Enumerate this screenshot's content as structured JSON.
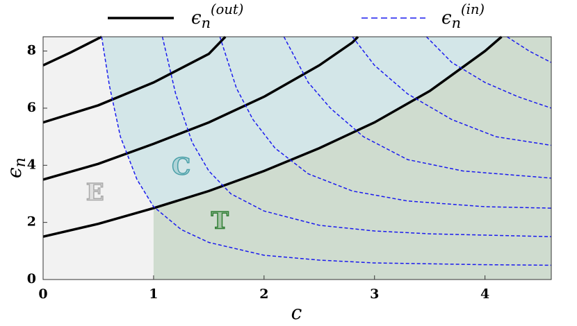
{
  "chart_data": {
    "type": "line",
    "x_label": "c",
    "y_label": "ϵn",
    "xlim": [
      0,
      4.6
    ],
    "ylim": [
      0,
      8.5
    ],
    "xticks": [
      0,
      1,
      2,
      3,
      4
    ],
    "yticks": [
      0,
      2,
      4,
      6,
      8
    ],
    "annotations": [
      "E",
      "C",
      "T"
    ],
    "series": [
      {
        "name": "ϵn(out)",
        "color": "#000000",
        "dashed": false,
        "curves": [
          {
            "x": [
              0,
              0.5,
              1,
              1.5,
              2,
              2.5,
              3,
              3.5,
              4,
              4.15
            ],
            "values": [
              1.5,
              1.95,
              2.5,
              3.1,
              3.8,
              4.6,
              5.5,
              6.6,
              8.0,
              8.5
            ]
          },
          {
            "x": [
              0,
              0.5,
              1,
              1.5,
              2,
              2.5,
              2.8,
              2.85
            ],
            "values": [
              3.5,
              4.05,
              4.75,
              5.5,
              6.4,
              7.5,
              8.3,
              8.5
            ]
          },
          {
            "x": [
              0,
              0.5,
              1,
              1.5,
              1.65
            ],
            "values": [
              5.5,
              6.1,
              6.9,
              7.9,
              8.5
            ]
          },
          {
            "x": [
              0,
              0.25,
              0.53
            ],
            "values": [
              7.5,
              7.95,
              8.5
            ]
          }
        ]
      },
      {
        "name": "ϵn(in)",
        "color": "#1a1aee",
        "dashed": true,
        "curves": [
          {
            "x": [
              0.53,
              0.6,
              0.7,
              0.85,
              1,
              1.25,
              1.5,
              2,
              2.5,
              3,
              4,
              4.6
            ],
            "values": [
              8.5,
              6.8,
              5.0,
              3.5,
              2.55,
              1.75,
              1.3,
              0.85,
              0.68,
              0.58,
              0.52,
              0.5
            ]
          },
          {
            "x": [
              1.08,
              1.2,
              1.35,
              1.5,
              1.7,
              2,
              2.5,
              3,
              3.5,
              4.6
            ],
            "values": [
              8.5,
              6.5,
              4.8,
              3.8,
              3.0,
              2.4,
              1.9,
              1.7,
              1.6,
              1.5
            ]
          },
          {
            "x": [
              1.6,
              1.75,
              1.9,
              2.1,
              2.4,
              2.8,
              3.3,
              4,
              4.6
            ],
            "values": [
              8.5,
              6.7,
              5.6,
              4.6,
              3.7,
              3.1,
              2.75,
              2.55,
              2.5
            ]
          },
          {
            "x": [
              2.18,
              2.4,
              2.6,
              2.9,
              3.3,
              3.8,
              4.6
            ],
            "values": [
              8.5,
              6.9,
              6.0,
              5.0,
              4.2,
              3.8,
              3.55
            ]
          },
          {
            "x": [
              2.8,
              3.0,
              3.3,
              3.7,
              4.1,
              4.6
            ],
            "values": [
              8.5,
              7.5,
              6.5,
              5.6,
              5.0,
              4.7
            ]
          },
          {
            "x": [
              3.47,
              3.7,
              4.0,
              4.3,
              4.6
            ],
            "values": [
              8.5,
              7.6,
              6.9,
              6.4,
              6.0
            ]
          },
          {
            "x": [
              4.2,
              4.4,
              4.6
            ],
            "values": [
              8.5,
              8.0,
              7.6
            ]
          }
        ]
      }
    ]
  }
}
